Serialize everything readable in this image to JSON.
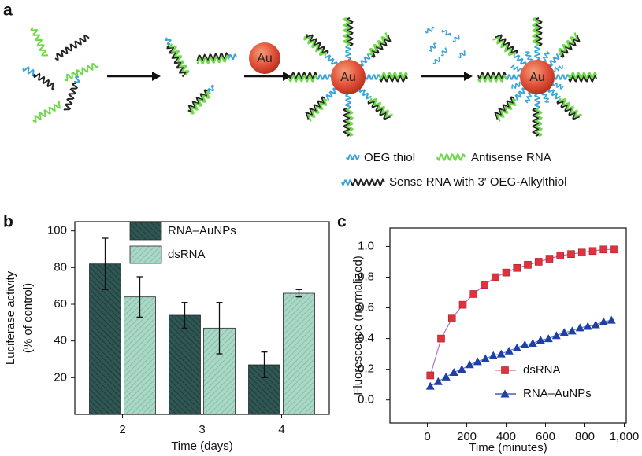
{
  "panel_labels": [
    "a",
    "b",
    "c"
  ],
  "diagram": {
    "particle_label": "Au",
    "legend": [
      "OEG thiol",
      "Antisense RNA",
      "Sense RNA with 3′ OEG-Alkylthiol"
    ]
  },
  "chart_data": [
    {
      "type": "bar",
      "xlabel": "Time (days)",
      "ylabel": [
        "Luciferase activity",
        "(% of control)"
      ],
      "categories": [
        "2",
        "3",
        "4"
      ],
      "series": [
        {
          "name": "RNA–AuNPs",
          "color": "#2f5652",
          "values": [
            82,
            54,
            27
          ],
          "errors": [
            14,
            7,
            7
          ]
        },
        {
          "name": "dsRNA",
          "color": "#a9d9c6",
          "values": [
            64,
            47,
            66
          ],
          "errors": [
            11,
            14,
            2
          ]
        }
      ],
      "ylim": [
        0,
        105
      ],
      "yticks": [
        20,
        40,
        60,
        80,
        100
      ],
      "legend": "upper-center"
    },
    {
      "type": "line",
      "xlabel": "Time (minutes)",
      "ylabel": "Fluorescence (normalized)",
      "xlim": [
        -190,
        1010
      ],
      "ylim": [
        -0.15,
        1.12
      ],
      "xticks": [
        0,
        200,
        400,
        600,
        800,
        {
          "value": 1000,
          "label": "1,000"
        }
      ],
      "yticks": [
        {
          "value": 0,
          "label": "0.0"
        },
        0.2,
        0.4,
        0.6,
        0.8,
        {
          "value": 1,
          "label": "1.0"
        }
      ],
      "legend": "lower-right",
      "series": [
        {
          "name": "dsRNA",
          "color": "#e0323c",
          "marker": "square",
          "x": [
            15,
            70,
            125,
            180,
            235,
            290,
            345,
            400,
            455,
            510,
            565,
            620,
            675,
            730,
            785,
            840,
            895,
            950
          ],
          "values": [
            0.16,
            0.4,
            0.53,
            0.62,
            0.69,
            0.75,
            0.8,
            0.83,
            0.86,
            0.88,
            0.9,
            0.92,
            0.94,
            0.95,
            0.96,
            0.97,
            0.98,
            0.98
          ]
        },
        {
          "name": "RNA–AuNPs",
          "color": "#1f3fa8",
          "marker": "triangle",
          "x": [
            15,
            55,
            95,
            135,
            175,
            215,
            255,
            295,
            335,
            375,
            415,
            455,
            495,
            535,
            575,
            615,
            655,
            695,
            735,
            775,
            815,
            855,
            895,
            935
          ],
          "values": [
            0.09,
            0.12,
            0.15,
            0.18,
            0.2,
            0.23,
            0.25,
            0.27,
            0.29,
            0.3,
            0.32,
            0.34,
            0.36,
            0.37,
            0.39,
            0.4,
            0.42,
            0.44,
            0.45,
            0.47,
            0.48,
            0.49,
            0.51,
            0.52
          ]
        }
      ]
    }
  ]
}
